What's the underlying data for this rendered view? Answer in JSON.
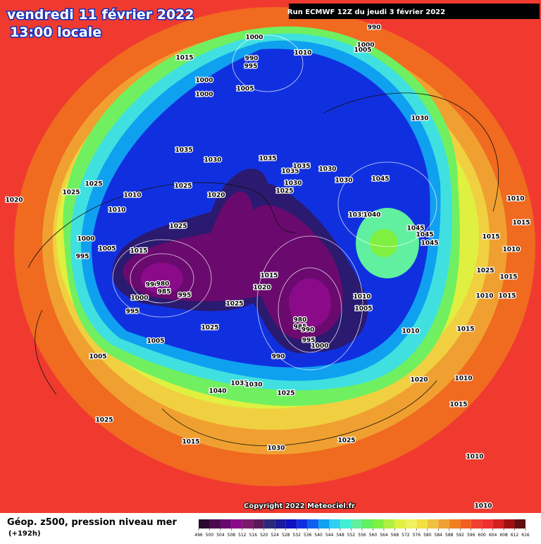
{
  "header": {
    "date": "vendredi 11 février 2022",
    "time": "13:00 locale",
    "run": "Run ECMWF 12Z du jeudi 3 février 2022"
  },
  "map": {
    "isobar_labels": [
      1000,
      990,
      995,
      1010,
      1015,
      1000,
      1000,
      1005,
      990,
      1000,
      1005,
      1030,
      1035,
      1030,
      1035,
      1035,
      1035,
      1030,
      1030,
      1045,
      1025,
      1025,
      1010,
      1025,
      1020,
      1030,
      1025,
      1020,
      1010,
      1035,
      1040,
      1045,
      1045,
      1045,
      1025,
      1000,
      1005,
      1015,
      995,
      990,
      980,
      985,
      995,
      1000,
      995,
      1015,
      1020,
      1025,
      1010,
      1005,
      980,
      985,
      990,
      995,
      1000,
      1010,
      1025,
      1005,
      1005,
      990,
      1040,
      1035,
      1030,
      1025,
      1020,
      1010,
      1015,
      1025,
      1015,
      1030,
      1025,
      1010,
      1010,
      1010,
      1015,
      1015,
      1010,
      1025,
      1015,
      1010,
      1015,
      1015
    ]
  },
  "footer": {
    "copyright": "Copyright 2022 Meteociel.fr",
    "legend_title": "Géop. z500, pression niveau mer",
    "lead": "(+192h)",
    "scale_ticks": [
      496,
      500,
      504,
      508,
      512,
      516,
      520,
      524,
      528,
      532,
      536,
      540,
      544,
      548,
      552,
      556,
      560,
      564,
      568,
      572,
      576,
      580,
      584,
      588,
      592,
      596,
      600,
      604,
      608,
      612,
      616
    ],
    "scale_colors": [
      "#2a0a2e",
      "#4b0a4f",
      "#6a0a6e",
      "#8a0a8a",
      "#7a1a6a",
      "#5a1a5a",
      "#2a2a7a",
      "#1a1a9a",
      "#1010c0",
      "#1030e0",
      "#1060f0",
      "#10a0f0",
      "#30d0f0",
      "#40f0d0",
      "#60f0a0",
      "#60f060",
      "#80f040",
      "#b0f040",
      "#e0f040",
      "#f0f060",
      "#f0e040",
      "#f0c040",
      "#f0a030",
      "#f08020",
      "#f06020",
      "#f04030",
      "#f03030",
      "#d02020",
      "#a01010",
      "#601010"
    ]
  }
}
